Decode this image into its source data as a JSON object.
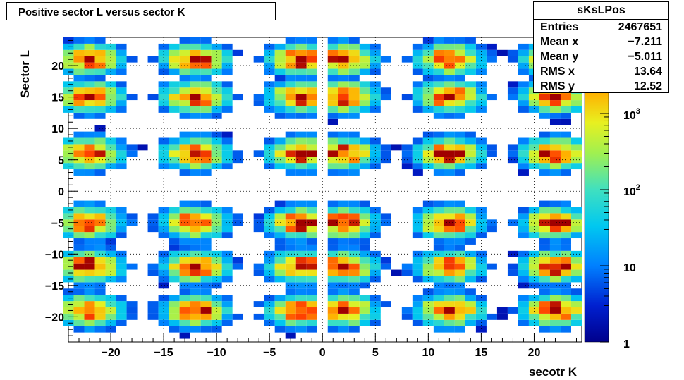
{
  "chart_data": {
    "type": "heatmap",
    "title": "Positive sector L versus sector K",
    "xlabel": "secotr K",
    "ylabel": "Sector L",
    "xlim": [
      -24,
      24.5
    ],
    "ylim": [
      -24,
      24.5
    ],
    "x_ticks": [
      "−20",
      "−15",
      "−10",
      "−5",
      "0",
      "5",
      "10",
      "15",
      "20"
    ],
    "y_ticks": [
      "20",
      "15",
      "10",
      "5",
      "0",
      "−5",
      "−10",
      "−15",
      "−20"
    ],
    "grid": true,
    "color_scale": "log",
    "zlim": [
      1,
      10000
    ],
    "z_ticks": [
      "1",
      "10",
      "10",
      "10"
    ],
    "z_tick_exponents": [
      "",
      "",
      "2",
      "3"
    ],
    "cluster_centers_x": [
      -22,
      -12,
      -2,
      2,
      12,
      22
    ],
    "cluster_centers_y": [
      21,
      15,
      6,
      -5,
      -12,
      -19
    ],
    "stats": {
      "name": "sKsLPos",
      "rows": [
        {
          "label": "Entries",
          "value": "2467651"
        },
        {
          "label": "Mean x",
          "value": "−7.211"
        },
        {
          "label": "Mean y",
          "value": "−5.011"
        },
        {
          "label": "RMS x",
          "value": "13.64"
        },
        {
          "label": "RMS y",
          "value": "12.52"
        }
      ]
    }
  }
}
